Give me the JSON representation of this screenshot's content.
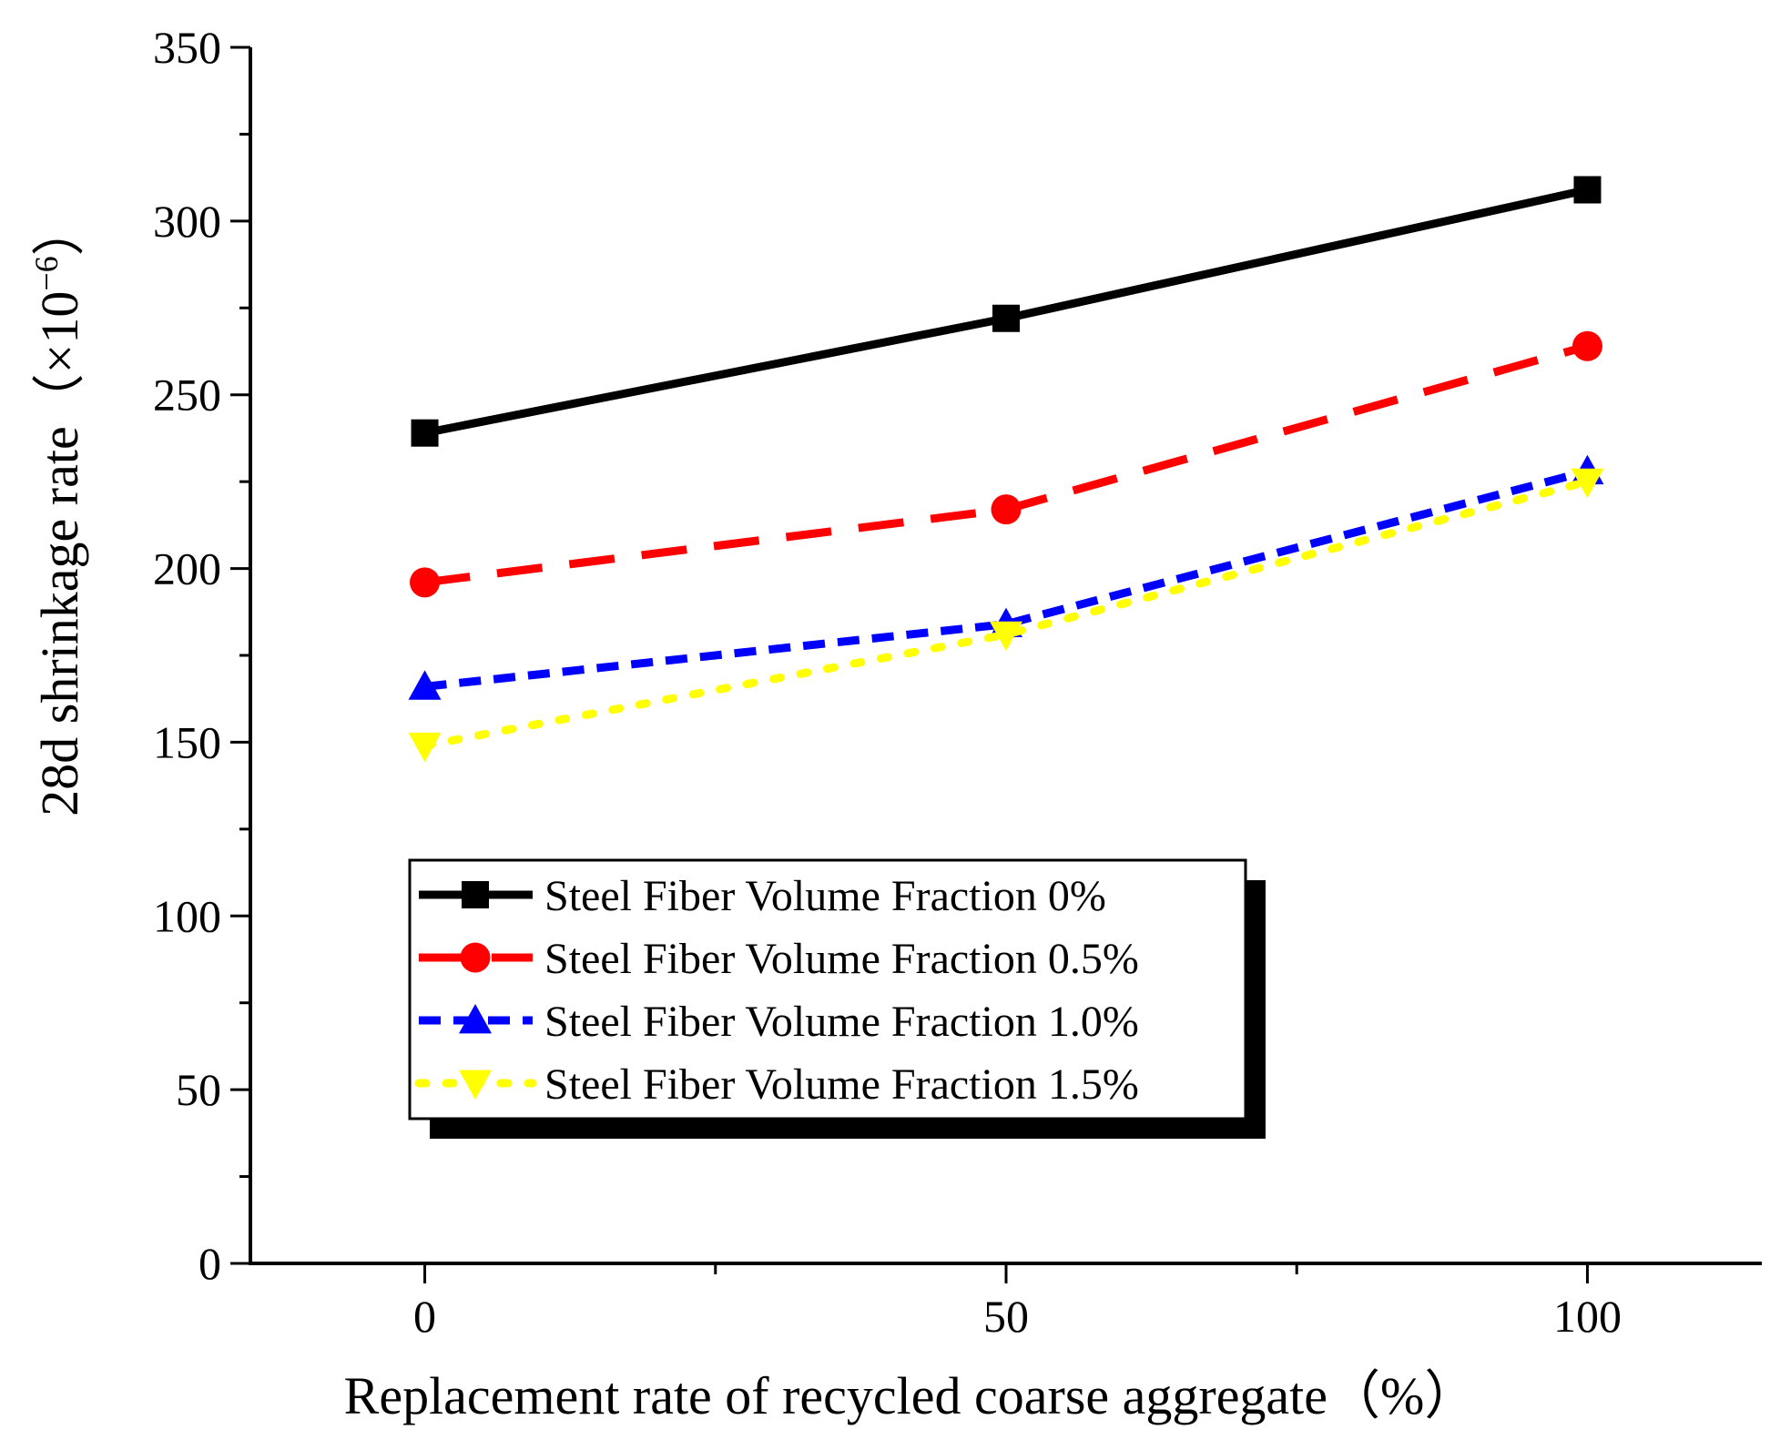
{
  "chart_data": {
    "type": "line",
    "title": "",
    "xlabel": "Replacement rate of recycled coarse aggregate（%）",
    "ylabel": "28d shrinkage rate（×10",
    "ylabel_exponent": "−6",
    "ylabel_close": "）",
    "x": [
      0,
      50,
      100
    ],
    "xlim": [
      -15,
      115
    ],
    "ylim": [
      0,
      350
    ],
    "x_ticks": [
      0,
      50,
      100
    ],
    "x_tick_labels": [
      "0",
      "50",
      "100"
    ],
    "y_ticks": [
      0,
      50,
      100,
      150,
      200,
      250,
      300,
      350
    ],
    "y_tick_labels": [
      "0",
      "50",
      "100",
      "150",
      "200",
      "250",
      "300",
      "350"
    ],
    "grid": false,
    "legend_position": "lower-left",
    "series": [
      {
        "name": "Steel Fiber Volume Fraction 0%",
        "values": [
          239,
          272,
          309
        ],
        "color": "#000000",
        "marker": "square",
        "line": "solid"
      },
      {
        "name": "Steel Fiber Volume Fraction 0.5%",
        "values": [
          196,
          217,
          264
        ],
        "color": "#ff0000",
        "marker": "circle",
        "line": "dashed"
      },
      {
        "name": "Steel Fiber Volume Fraction 1.0%",
        "values": [
          166,
          184,
          228
        ],
        "color": "#0000ff",
        "marker": "triangle-up",
        "line": "short-dashed"
      },
      {
        "name": "Steel Fiber Volume Fraction 1.5%",
        "values": [
          149,
          181,
          225
        ],
        "color": "#ffff00",
        "marker": "triangle-down",
        "line": "dotted"
      }
    ]
  }
}
